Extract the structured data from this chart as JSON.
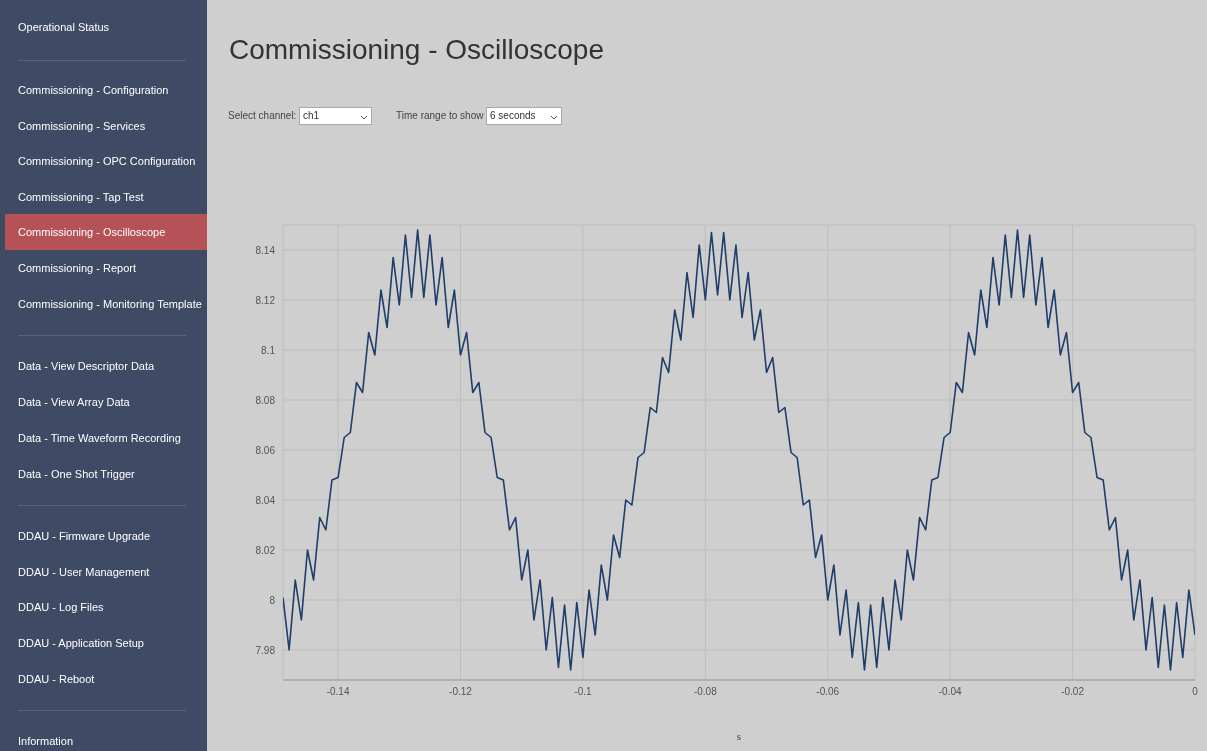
{
  "chart_data": {
    "type": "line",
    "title": "Commissioning - Oscilloscope",
    "xlabel": "s",
    "annotations": [
      "Operational Status",
      "Commissioning - Configuration",
      "Commissioning - Services",
      "Commissioning - OPC Configuration",
      "Commissioning - Tap Test",
      "Commissioning - Oscilloscope",
      "Commissioning - Report",
      "Commissioning - Monitoring Template",
      "Data - View Descriptor Data",
      "Data - View Array Data",
      "Data - Time Waveform Recording",
      "Data - One Shot Trigger",
      "DDAU - Firmware Upgrade",
      "DDAU - User Management",
      "DDAU - Log Files",
      "DDAU - Application Setup",
      "DDAU - Reboot",
      "Information",
      "Select channel:",
      "ch1",
      "Time range to show",
      "6 seconds"
    ],
    "x": [
      -0.149,
      -0.148,
      -0.147,
      -0.146,
      -0.145,
      -0.144,
      -0.143,
      -0.142,
      -0.141,
      -0.14,
      -0.139,
      -0.138,
      -0.137,
      -0.136,
      -0.135,
      -0.134,
      -0.133,
      -0.132,
      -0.131,
      -0.13,
      -0.129,
      -0.128,
      -0.127,
      -0.126,
      -0.125,
      -0.124,
      -0.123,
      -0.122,
      -0.121,
      -0.12,
      -0.119,
      -0.118,
      -0.117,
      -0.116,
      -0.115,
      -0.114,
      -0.113,
      -0.112,
      -0.111,
      -0.11,
      -0.109,
      -0.108,
      -0.107,
      -0.106,
      -0.105,
      -0.104,
      -0.103,
      -0.102,
      -0.101,
      -0.1,
      -0.099,
      -0.098,
      -0.097,
      -0.096,
      -0.095,
      -0.094,
      -0.093,
      -0.092,
      -0.091,
      -0.09,
      -0.089,
      -0.088,
      -0.087,
      -0.086,
      -0.085,
      -0.084,
      -0.083,
      -0.082,
      -0.081,
      -0.08,
      -0.079,
      -0.078,
      -0.077,
      -0.076,
      -0.075,
      -0.074,
      -0.073,
      -0.072,
      -0.071,
      -0.07,
      -0.069,
      -0.068,
      -0.067,
      -0.066,
      -0.065,
      -0.064,
      -0.063,
      -0.062,
      -0.061,
      -0.06,
      -0.059,
      -0.058,
      -0.057,
      -0.056,
      -0.055,
      -0.054,
      -0.053,
      -0.052,
      -0.051,
      -0.05,
      -0.049,
      -0.048,
      -0.047,
      -0.046,
      -0.045,
      -0.044,
      -0.043,
      -0.042,
      -0.041,
      -0.04,
      -0.039,
      -0.038,
      -0.037,
      -0.036,
      -0.035,
      -0.034,
      -0.033,
      -0.032,
      -0.031,
      -0.03,
      -0.029,
      -0.028,
      -0.027,
      -0.026,
      -0.025,
      -0.024,
      -0.023,
      -0.022,
      -0.021,
      -0.02,
      -0.019,
      -0.018,
      -0.017,
      -0.016,
      -0.015,
      -0.014,
      -0.013,
      -0.012,
      -0.011,
      -0.01,
      -0.009,
      -0.008,
      -0.007,
      -0.006,
      -0.005,
      -0.004,
      -0.003,
      -0.002,
      -0.001,
      0
    ],
    "values": [
      8.001,
      7.98,
      8.008,
      7.992,
      8.02,
      8.008,
      8.033,
      8.028,
      8.048,
      8.049,
      8.065,
      8.067,
      8.087,
      8.083,
      8.107,
      8.098,
      8.124,
      8.109,
      8.137,
      8.118,
      8.146,
      8.121,
      8.148,
      8.121,
      8.146,
      8.118,
      8.137,
      8.109,
      8.124,
      8.098,
      8.107,
      8.083,
      8.087,
      8.067,
      8.065,
      8.049,
      8.048,
      8.028,
      8.033,
      8.008,
      8.02,
      7.992,
      8.008,
      7.98,
      8.001,
      7.973,
      7.998,
      7.972,
      7.999,
      7.977,
      8.004,
      7.986,
      8.014,
      8,
      8.026,
      8.017,
      8.04,
      8.038,
      8.057,
      8.059,
      8.077,
      8.075,
      8.097,
      8.091,
      8.116,
      8.104,
      8.131,
      8.113,
      8.142,
      8.12,
      8.147,
      8.122,
      8.147,
      8.12,
      8.142,
      8.113,
      8.131,
      8.104,
      8.116,
      8.091,
      8.097,
      8.075,
      8.077,
      8.059,
      8.057,
      8.038,
      8.04,
      8.017,
      8.026,
      8,
      8.014,
      7.986,
      8.004,
      7.977,
      7.999,
      7.972,
      7.998,
      7.973,
      8.001,
      7.98,
      8.008,
      7.992,
      8.02,
      8.008,
      8.033,
      8.028,
      8.048,
      8.049,
      8.065,
      8.067,
      8.087,
      8.083,
      8.107,
      8.098,
      8.124,
      8.109,
      8.137,
      8.118,
      8.146,
      8.121,
      8.148,
      8.121,
      8.146,
      8.118,
      8.137,
      8.109,
      8.124,
      8.098,
      8.107,
      8.083,
      8.087,
      8.067,
      8.065,
      8.049,
      8.048,
      8.028,
      8.033,
      8.008,
      8.02,
      7.992,
      8.008,
      7.98,
      8.001,
      7.973,
      7.998,
      7.972,
      7.999,
      7.977,
      8.004,
      7.986
    ],
    "color": "#1f3d6b",
    "xlim": [
      -0.149,
      0
    ],
    "ylim": [
      7.968,
      8.15
    ],
    "xticks": [
      -0.14,
      -0.12,
      -0.1,
      -0.08,
      -0.06,
      -0.04,
      -0.02,
      0
    ],
    "yticks": [
      7.98,
      8,
      8.02,
      8.04,
      8.06,
      8.08,
      8.1,
      8.12,
      8.14
    ],
    "grid": true
  }
}
